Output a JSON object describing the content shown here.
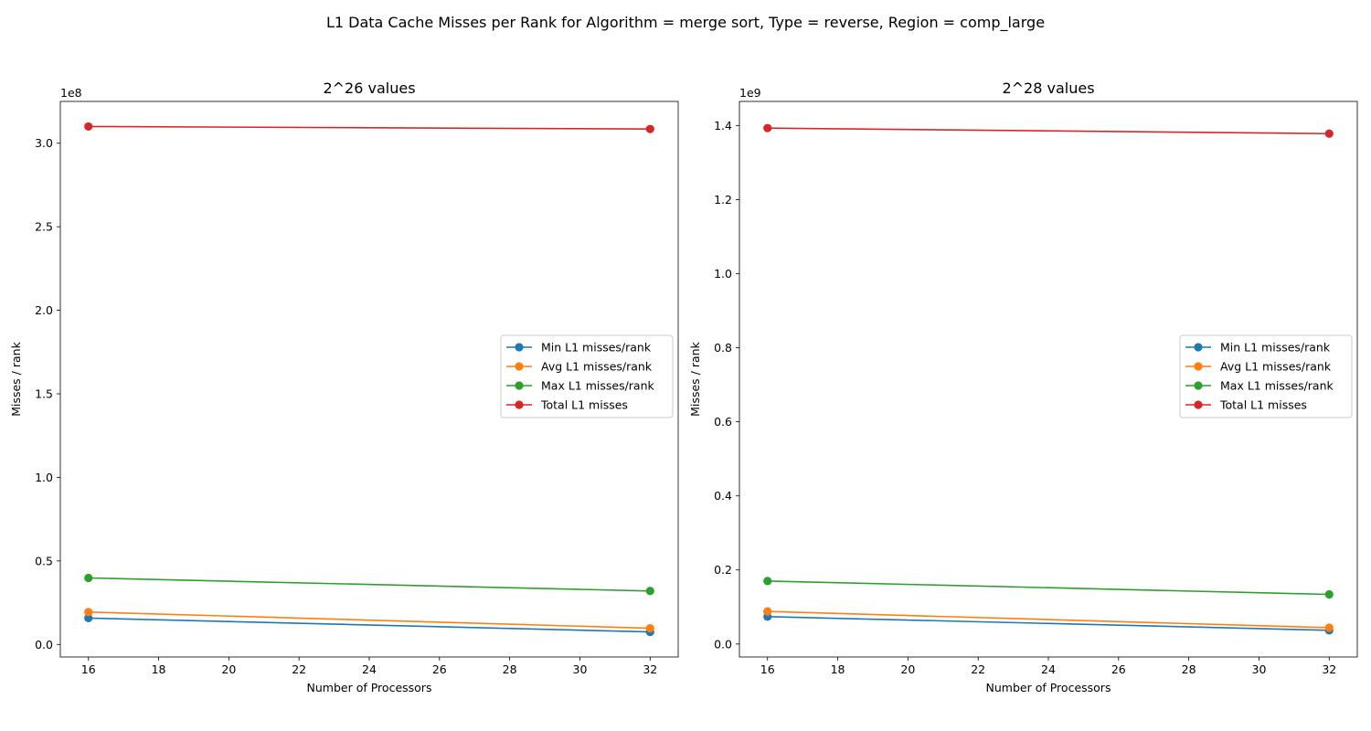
{
  "suptitle": "L1 Data Cache Misses per Rank for Algorithm = merge sort, Type = reverse, Region = comp_large",
  "colors": {
    "min": "#1f77b4",
    "avg": "#ff7f0e",
    "max": "#2ca02c",
    "total": "#d62728"
  },
  "chart_data": [
    {
      "type": "line",
      "title": "2^26 values",
      "xlabel": "Number of Processors",
      "ylabel": "Misses / rank",
      "offset_label": "1e8",
      "scale": 100000000,
      "x": [
        16,
        32
      ],
      "xlim": [
        15.2,
        32.8
      ],
      "ylim": [
        -7500000,
        325000000
      ],
      "xticks": [
        16,
        18,
        20,
        22,
        24,
        26,
        28,
        30,
        32
      ],
      "xtick_labels": [
        "16",
        "18",
        "20",
        "22",
        "24",
        "26",
        "28",
        "30",
        "32"
      ],
      "yticks": [
        0,
        50000000,
        100000000,
        150000000,
        200000000,
        250000000,
        300000000
      ],
      "ytick_labels": [
        "0.0",
        "0.5",
        "1.0",
        "1.5",
        "2.0",
        "2.5",
        "3.0"
      ],
      "legend_position": "center-right",
      "series": [
        {
          "name": "Min L1 misses/rank",
          "color_key": "min",
          "values": [
            15800000,
            7500000
          ]
        },
        {
          "name": "Avg L1 misses/rank",
          "color_key": "avg",
          "values": [
            19400000,
            9700000
          ]
        },
        {
          "name": "Max L1 misses/rank",
          "color_key": "max",
          "values": [
            39800000,
            32000000
          ]
        },
        {
          "name": "Total L1 misses",
          "color_key": "total",
          "values": [
            310000000,
            308500000
          ]
        }
      ]
    },
    {
      "type": "line",
      "title": "2^28 values",
      "xlabel": "Number of Processors",
      "ylabel": "Misses / rank",
      "offset_label": "1e9",
      "scale": 1000000000,
      "x": [
        16,
        32
      ],
      "xlim": [
        15.2,
        32.8
      ],
      "ylim": [
        -35000000,
        1465000000
      ],
      "xticks": [
        16,
        18,
        20,
        22,
        24,
        26,
        28,
        30,
        32
      ],
      "xtick_labels": [
        "16",
        "18",
        "20",
        "22",
        "24",
        "26",
        "28",
        "30",
        "32"
      ],
      "yticks": [
        0,
        200000000,
        400000000,
        600000000,
        800000000,
        1000000000,
        1200000000,
        1400000000
      ],
      "ytick_labels": [
        "0.0",
        "0.2",
        "0.4",
        "0.6",
        "0.8",
        "1.0",
        "1.2",
        "1.4"
      ],
      "legend_position": "center-right",
      "series": [
        {
          "name": "Min L1 misses/rank",
          "color_key": "min",
          "values": [
            74000000,
            37000000
          ]
        },
        {
          "name": "Avg L1 misses/rank",
          "color_key": "avg",
          "values": [
            88000000,
            44000000
          ]
        },
        {
          "name": "Max L1 misses/rank",
          "color_key": "max",
          "values": [
            170000000,
            134000000
          ]
        },
        {
          "name": "Total L1 misses",
          "color_key": "total",
          "values": [
            1393000000,
            1378000000
          ]
        }
      ]
    }
  ]
}
